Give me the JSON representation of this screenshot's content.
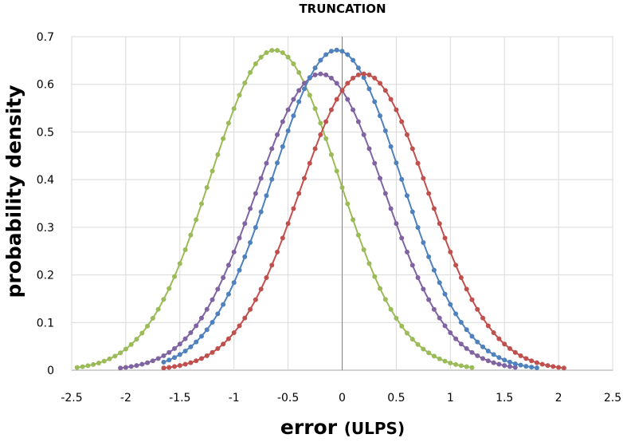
{
  "chart_data": {
    "type": "scatter",
    "title": "TRUNCATION",
    "xlabel": "error",
    "xlabel_unit": "(ULPS)",
    "ylabel": "probability density",
    "xlim": [
      -2.5,
      2.5
    ],
    "ylim": [
      0,
      0.7
    ],
    "x_ticks": [
      "-2.5",
      "-2",
      "-1.5",
      "-1",
      "-0.5",
      "0",
      "0.5",
      "1",
      "1.5",
      "2",
      "2.5"
    ],
    "y_ticks": [
      "0",
      "0.1",
      "0.2",
      "0.3",
      "0.4",
      "0.5",
      "0.6",
      "0.7"
    ],
    "grid": true,
    "legend": "none",
    "series": [
      {
        "color": "#9bbb59",
        "peak_x": -0.625,
        "peak_y": 0.672,
        "x_min": -2.45,
        "x_max": 1.2
      },
      {
        "color": "#8064a2",
        "peak_x": -0.2,
        "peak_y": 0.622,
        "x_min": -2.05,
        "x_max": 1.6
      },
      {
        "color": "#4f81bd",
        "peak_x": -0.05,
        "peak_y": 0.672,
        "x_min": -1.65,
        "x_max": 1.8
      },
      {
        "color": "#c0504d",
        "peak_x": 0.2,
        "peak_y": 0.622,
        "x_min": -1.65,
        "x_max": 2.05
      }
    ]
  }
}
